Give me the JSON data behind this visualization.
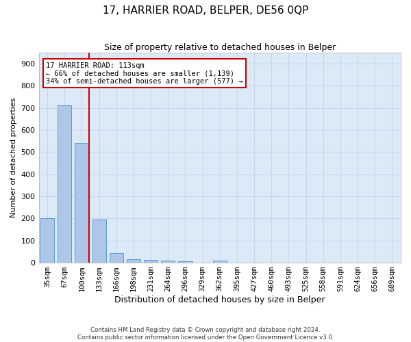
{
  "title": "17, HARRIER ROAD, BELPER, DE56 0QP",
  "subtitle": "Size of property relative to detached houses in Belper",
  "xlabel": "Distribution of detached houses by size in Belper",
  "ylabel": "Number of detached properties",
  "categories": [
    "35sqm",
    "67sqm",
    "100sqm",
    "133sqm",
    "166sqm",
    "198sqm",
    "231sqm",
    "264sqm",
    "296sqm",
    "329sqm",
    "362sqm",
    "395sqm",
    "427sqm",
    "460sqm",
    "493sqm",
    "525sqm",
    "558sqm",
    "591sqm",
    "624sqm",
    "656sqm",
    "689sqm"
  ],
  "values": [
    202,
    710,
    540,
    195,
    42,
    17,
    12,
    8,
    6,
    0,
    8,
    0,
    0,
    0,
    0,
    0,
    0,
    0,
    0,
    0,
    0
  ],
  "bar_color": "#aec6e8",
  "bar_edge_color": "#5b9bd5",
  "red_line_index": 2,
  "red_line_color": "#cc0000",
  "annotation_line1": "17 HARRIER ROAD: 113sqm",
  "annotation_line2": "← 66% of detached houses are smaller (1,139)",
  "annotation_line3": "34% of semi-detached houses are larger (577) →",
  "annotation_box_color": "#ffffff",
  "annotation_box_edge_color": "#cc0000",
  "ylim": [
    0,
    950
  ],
  "yticks": [
    0,
    100,
    200,
    300,
    400,
    500,
    600,
    700,
    800,
    900
  ],
  "grid_color": "#c8d8ec",
  "background_color": "#dce9f7",
  "footer_line1": "Contains HM Land Registry data © Crown copyright and database right 2024.",
  "footer_line2": "Contains public sector information licensed under the Open Government Licence v3.0.",
  "title_fontsize": 11,
  "subtitle_fontsize": 9,
  "ylabel_fontsize": 8,
  "xlabel_fontsize": 9,
  "tick_fontsize": 7.5,
  "ytick_fontsize": 8
}
